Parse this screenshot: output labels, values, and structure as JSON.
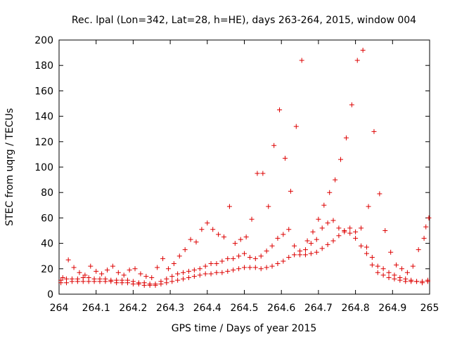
{
  "chart_data": {
    "type": "scatter",
    "title": "Rec. lpal (Lon=342, Lat=28, h=HE), days 263-264, 2015, window 004",
    "xlabel": "GPS time / Days of year 2015",
    "ylabel": "STEC from uqrg / TECUs",
    "xlim": [
      264,
      265
    ],
    "ylim": [
      0,
      200
    ],
    "x_ticks": [
      "264",
      "264.1",
      "264.2",
      "264.3",
      "264.4",
      "264.5",
      "264.6",
      "264.7",
      "264.8",
      "264.9",
      "265"
    ],
    "y_ticks": [
      "0",
      "20",
      "40",
      "60",
      "80",
      "100",
      "120",
      "140",
      "160",
      "180",
      "200"
    ],
    "grid": false,
    "legend": "none",
    "marker": "+",
    "color": "#dd0000",
    "series": [
      {
        "points": [
          [
            264.005,
            9
          ],
          [
            264.02,
            9
          ],
          [
            264.035,
            10
          ],
          [
            264.05,
            10
          ],
          [
            264.065,
            10
          ],
          [
            264.08,
            10
          ],
          [
            264.095,
            10
          ],
          [
            264.11,
            10
          ],
          [
            264.125,
            10
          ],
          [
            264.14,
            10
          ],
          [
            264.155,
            9
          ],
          [
            264.17,
            9
          ],
          [
            264.185,
            9
          ],
          [
            264.2,
            8
          ],
          [
            264.215,
            8
          ],
          [
            264.23,
            7
          ],
          [
            264.245,
            7
          ],
          [
            264.26,
            7
          ],
          [
            264.275,
            8
          ],
          [
            264.29,
            9
          ],
          [
            264.305,
            10
          ],
          [
            264.32,
            11
          ],
          [
            264.335,
            12
          ],
          [
            264.35,
            13
          ],
          [
            264.365,
            14
          ],
          [
            264.38,
            15
          ],
          [
            264.395,
            16
          ],
          [
            264.41,
            16
          ],
          [
            264.425,
            17
          ],
          [
            264.44,
            17
          ],
          [
            264.455,
            18
          ],
          [
            264.47,
            19
          ],
          [
            264.485,
            20
          ],
          [
            264.5,
            21
          ],
          [
            264.515,
            21
          ],
          [
            264.53,
            21
          ],
          [
            264.545,
            20
          ],
          [
            264.56,
            21
          ],
          [
            264.575,
            22
          ],
          [
            264.59,
            24
          ],
          [
            264.605,
            26
          ],
          [
            264.62,
            29
          ],
          [
            264.635,
            31
          ],
          [
            264.65,
            31
          ],
          [
            264.665,
            31
          ],
          [
            264.68,
            32
          ],
          [
            264.695,
            33
          ],
          [
            264.71,
            36
          ],
          [
            264.725,
            39
          ],
          [
            264.74,
            42
          ],
          [
            264.755,
            46
          ],
          [
            264.77,
            49
          ],
          [
            264.785,
            48
          ],
          [
            264.8,
            44
          ],
          [
            264.815,
            38
          ],
          [
            264.83,
            32
          ],
          [
            264.845,
            23
          ],
          [
            264.86,
            17
          ],
          [
            264.875,
            15
          ],
          [
            264.89,
            13
          ],
          [
            264.905,
            12
          ],
          [
            264.92,
            11
          ],
          [
            264.935,
            10
          ],
          [
            264.95,
            10
          ],
          [
            264.965,
            10
          ],
          [
            264.98,
            10
          ],
          [
            264.995,
            11
          ],
          [
            264.005,
            11
          ],
          [
            264.02,
            12
          ],
          [
            264.035,
            12
          ],
          [
            264.05,
            12
          ],
          [
            264.065,
            13
          ],
          [
            264.08,
            13
          ],
          [
            264.095,
            12
          ],
          [
            264.11,
            12
          ],
          [
            264.125,
            12
          ],
          [
            264.14,
            11
          ],
          [
            264.155,
            11
          ],
          [
            264.17,
            11
          ],
          [
            264.185,
            11
          ],
          [
            264.2,
            10
          ],
          [
            264.215,
            9
          ],
          [
            264.23,
            9
          ],
          [
            264.245,
            8
          ],
          [
            264.26,
            8
          ],
          [
            264.275,
            10
          ],
          [
            264.29,
            12
          ],
          [
            264.305,
            14
          ],
          [
            264.32,
            16
          ],
          [
            264.335,
            17
          ],
          [
            264.35,
            18
          ],
          [
            264.365,
            19
          ],
          [
            264.38,
            20
          ],
          [
            264.395,
            22
          ],
          [
            264.41,
            24
          ],
          [
            264.425,
            24
          ],
          [
            264.44,
            26
          ],
          [
            264.455,
            28
          ],
          [
            264.47,
            28
          ],
          [
            264.485,
            30
          ],
          [
            264.5,
            32
          ],
          [
            264.515,
            29
          ],
          [
            264.53,
            28
          ],
          [
            264.545,
            30
          ],
          [
            264.56,
            34
          ],
          [
            264.575,
            38
          ],
          [
            264.59,
            44
          ],
          [
            264.605,
            47
          ],
          [
            264.62,
            51
          ],
          [
            264.635,
            38
          ],
          [
            264.65,
            34
          ],
          [
            264.665,
            35
          ],
          [
            264.68,
            40
          ],
          [
            264.695,
            43
          ],
          [
            264.71,
            52
          ],
          [
            264.725,
            56
          ],
          [
            264.74,
            58
          ],
          [
            264.755,
            52
          ],
          [
            264.77,
            50
          ],
          [
            264.785,
            52
          ],
          [
            264.8,
            49
          ],
          [
            264.815,
            52
          ],
          [
            264.83,
            37
          ],
          [
            264.845,
            29
          ],
          [
            264.86,
            22
          ],
          [
            264.875,
            20
          ],
          [
            264.89,
            17
          ],
          [
            264.905,
            15
          ],
          [
            264.92,
            13
          ],
          [
            264.935,
            12
          ],
          [
            264.95,
            11
          ],
          [
            264.965,
            10
          ],
          [
            264.98,
            9
          ],
          [
            264.995,
            10
          ],
          [
            264.01,
            13
          ],
          [
            264.025,
            27
          ],
          [
            264.04,
            21
          ],
          [
            264.055,
            17
          ],
          [
            264.07,
            15
          ],
          [
            264.085,
            22
          ],
          [
            264.1,
            18
          ],
          [
            264.115,
            16
          ],
          [
            264.13,
            19
          ],
          [
            264.145,
            22
          ],
          [
            264.16,
            17
          ],
          [
            264.175,
            15
          ],
          [
            264.19,
            19
          ],
          [
            264.205,
            20
          ],
          [
            264.22,
            16
          ],
          [
            264.235,
            14
          ],
          [
            264.25,
            13
          ],
          [
            264.265,
            21
          ],
          [
            264.28,
            28
          ],
          [
            264.295,
            20
          ],
          [
            264.31,
            24
          ],
          [
            264.325,
            30
          ],
          [
            264.34,
            35
          ],
          [
            264.355,
            43
          ],
          [
            264.37,
            41
          ],
          [
            264.385,
            51
          ],
          [
            264.4,
            56
          ],
          [
            264.415,
            51
          ],
          [
            264.43,
            47
          ],
          [
            264.445,
            45
          ],
          [
            264.46,
            69
          ],
          [
            264.475,
            40
          ],
          [
            264.49,
            43
          ],
          [
            264.505,
            45
          ],
          [
            264.52,
            59
          ],
          [
            264.535,
            95
          ],
          [
            264.55,
            95
          ],
          [
            264.565,
            69
          ],
          [
            264.58,
            117
          ],
          [
            264.595,
            145
          ],
          [
            264.61,
            107
          ],
          [
            264.625,
            81
          ],
          [
            264.64,
            132
          ],
          [
            264.655,
            184
          ],
          [
            264.67,
            42
          ],
          [
            264.685,
            49
          ],
          [
            264.7,
            59
          ],
          [
            264.715,
            70
          ],
          [
            264.73,
            80
          ],
          [
            264.745,
            90
          ],
          [
            264.76,
            106
          ],
          [
            264.775,
            123
          ],
          [
            264.79,
            149
          ],
          [
            264.805,
            184
          ],
          [
            264.82,
            192
          ],
          [
            264.835,
            69
          ],
          [
            264.85,
            128
          ],
          [
            264.865,
            79
          ],
          [
            264.88,
            50
          ],
          [
            264.895,
            33
          ],
          [
            264.91,
            23
          ],
          [
            264.925,
            20
          ],
          [
            264.94,
            17
          ],
          [
            264.955,
            22
          ],
          [
            264.97,
            35
          ],
          [
            264.985,
            44
          ],
          [
            264.99,
            53
          ],
          [
            264.998,
            60
          ]
        ]
      }
    ]
  }
}
